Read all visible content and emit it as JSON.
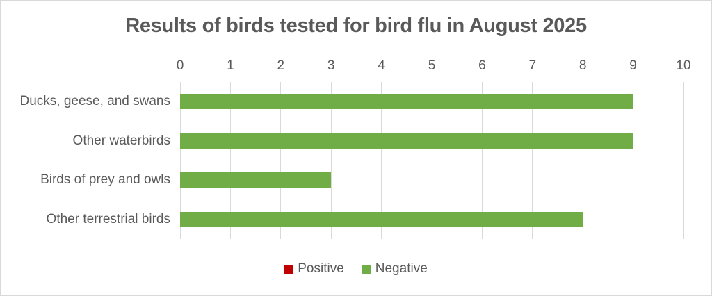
{
  "chart_data": {
    "type": "bar",
    "orientation": "horizontal",
    "title": "Results of birds tested for bird flu in August 2025",
    "categories": [
      "Ducks, geese, and swans",
      "Other waterbirds",
      "Birds of prey and owls",
      "Other terrestrial birds"
    ],
    "series": [
      {
        "name": "Positive",
        "color": "#C00000",
        "values": [
          0,
          0,
          0,
          0
        ]
      },
      {
        "name": "Negative",
        "color": "#70AD47",
        "values": [
          9,
          9,
          3,
          8
        ]
      }
    ],
    "xlabel": "",
    "ylabel": "",
    "xlim": [
      0,
      10
    ],
    "x_ticks": [
      0,
      1,
      2,
      3,
      4,
      5,
      6,
      7,
      8,
      9,
      10
    ],
    "axis_position": "top",
    "grid": true,
    "legend_position": "bottom"
  },
  "colors": {
    "positive": "#C00000",
    "negative": "#70AD47",
    "text": "#595959",
    "gridline": "#D9D9D9",
    "border": "#D9D9D9",
    "background": "#FFFFFF"
  }
}
